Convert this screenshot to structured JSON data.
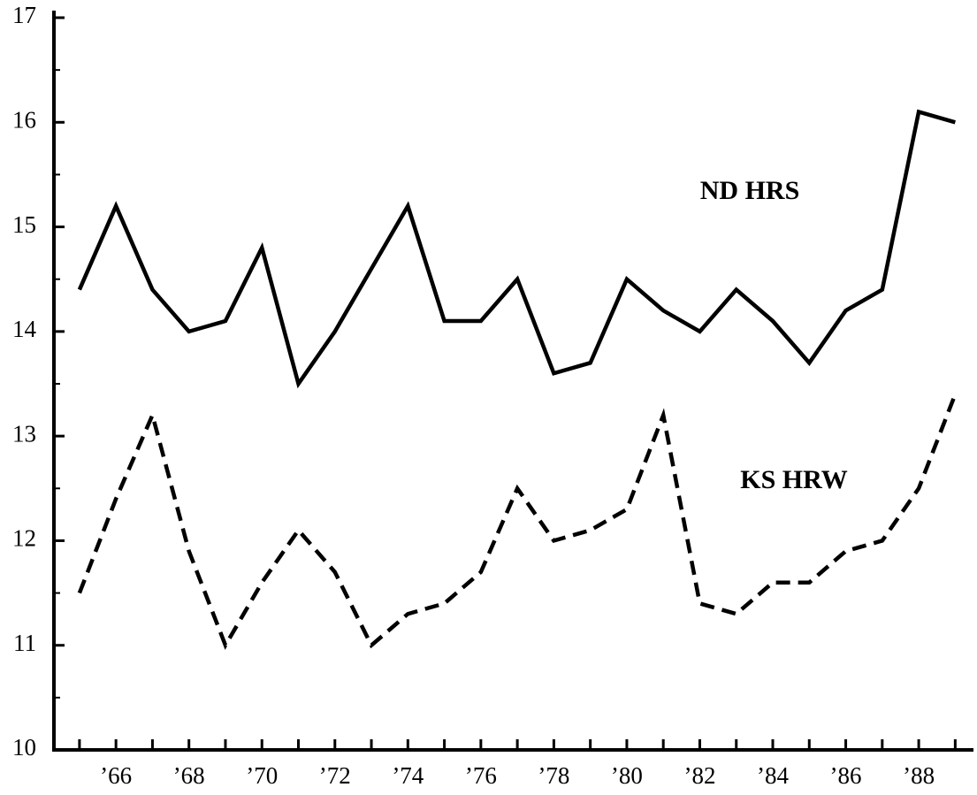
{
  "chart_data": {
    "type": "line",
    "x": [
      65,
      66,
      67,
      68,
      69,
      70,
      71,
      72,
      73,
      74,
      75,
      76,
      77,
      78,
      79,
      80,
      81,
      82,
      83,
      84,
      85,
      86,
      87,
      88,
      89
    ],
    "series": [
      {
        "name": "ND HRS",
        "color": "#000000",
        "style": "solid",
        "values": [
          14.4,
          15.2,
          14.4,
          14.0,
          14.1,
          14.8,
          13.5,
          14.0,
          14.6,
          15.2,
          14.1,
          14.1,
          14.5,
          13.6,
          13.7,
          14.5,
          14.2,
          14.0,
          14.4,
          14.1,
          13.7,
          14.2,
          14.4,
          16.1,
          16.0
        ]
      },
      {
        "name": "KS HRW",
        "color": "#000000",
        "style": "dashed",
        "values": [
          11.5,
          12.4,
          13.2,
          11.9,
          11.0,
          11.6,
          12.1,
          11.7,
          11.0,
          11.3,
          11.4,
          11.7,
          12.5,
          12.0,
          12.1,
          12.3,
          13.2,
          11.4,
          11.3,
          11.6,
          11.6,
          11.9,
          12.0,
          12.5,
          13.4
        ]
      }
    ],
    "xlim": [
      64.3,
      89.5
    ],
    "xticks": [
      {
        "value": 66,
        "label": "’66"
      },
      {
        "value": 68,
        "label": "’68"
      },
      {
        "value": 70,
        "label": "’70"
      },
      {
        "value": 72,
        "label": "’72"
      },
      {
        "value": 74,
        "label": "’74"
      },
      {
        "value": 76,
        "label": "’76"
      },
      {
        "value": 78,
        "label": "’78"
      },
      {
        "value": 80,
        "label": "’80"
      },
      {
        "value": 82,
        "label": "’82"
      },
      {
        "value": 84,
        "label": "’84"
      },
      {
        "value": 86,
        "label": "’86"
      },
      {
        "value": 88,
        "label": "’88"
      }
    ],
    "xminorticks": [
      65,
      67,
      69,
      71,
      73,
      75,
      77,
      79,
      81,
      83,
      85,
      87,
      89
    ],
    "ylim": [
      10,
      17
    ],
    "yticks": [
      10,
      11,
      12,
      13,
      14,
      15,
      16,
      17
    ],
    "yminorticks": [
      10.5,
      11.5,
      12.5,
      13.5,
      14.5,
      15.5,
      16.5
    ],
    "grid": false
  }
}
